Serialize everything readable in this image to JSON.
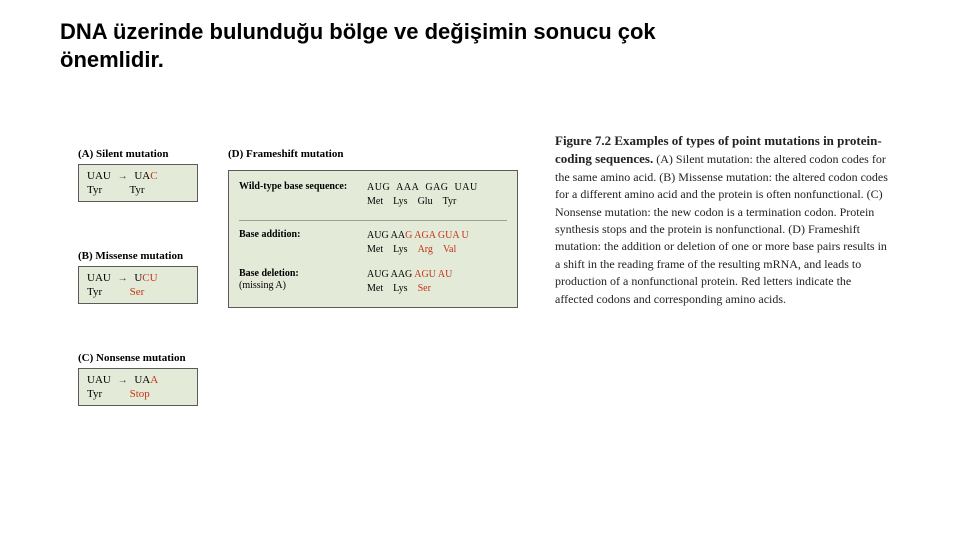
{
  "title": "DNA üzerinde bulunduğu bölge ve değişimin sonucu çok önemlidir.",
  "panelA": {
    "label": "(A) Silent mutation",
    "from_codon": "UAU",
    "to_codon_pre": "UA",
    "to_codon_mut": "C",
    "from_aa": "Tyr",
    "to_aa": "Tyr",
    "to_aa_red": false
  },
  "panelB": {
    "label": "(B) Missense mutation",
    "from_codon": "UAU",
    "to_codon_pre": "U",
    "to_codon_mut": "CU",
    "from_aa": "Tyr",
    "to_aa": "Ser",
    "to_aa_red": true
  },
  "panelC": {
    "label": "(C) Nonsense mutation",
    "from_codon": "UAU",
    "to_codon_pre": "UA",
    "to_codon_mut": "A",
    "from_aa": "Tyr",
    "to_aa": "Stop",
    "to_aa_red": true
  },
  "frameshift": {
    "label": "(D) Frameshift mutation",
    "wild": {
      "key": "Wild-type base sequence:",
      "codons": [
        "AUG",
        "AAA",
        "GAG",
        "UAU"
      ],
      "aas": [
        "Met",
        "Lys",
        "Glu",
        "Tyr"
      ],
      "red_codons": [
        false,
        false,
        false,
        false
      ],
      "red_aas": [
        false,
        false,
        false,
        false
      ]
    },
    "addition": {
      "key": "Base addition:",
      "codons_html": "AUG AA<span class='red'>G</span> <span class='red'>AGA</span> <span class='red'>GUA</span> <span class='red'>U</span>",
      "aas": [
        "Met",
        "Lys",
        "Arg",
        "Val"
      ],
      "red_aas": [
        false,
        false,
        true,
        true
      ]
    },
    "deletion": {
      "key_l1": "Base deletion:",
      "key_l2": "(missing A)",
      "codons_html": "AUG AAG <span class='red'>AGU</span> <span class='red'>AU</span>",
      "aas": [
        "Met",
        "Lys",
        "Ser"
      ],
      "red_aas": [
        false,
        false,
        true
      ]
    }
  },
  "caption": {
    "title": "Figure 7.2  Examples of types of point mutations in protein-coding sequences.",
    "body": " (A) Silent mutation: the altered codon codes for the same amino acid. (B) Missense mutation: the altered codon codes for a different amino acid and the protein is often nonfunctional. (C) Nonsense mutation: the new codon is a termination codon. Protein synthesis stops and the protein is nonfunctional. (D) Frameshift mutation: the addition or deletion of one or more base pairs results in a shift in the reading frame of the resulting mRNA, and leads to production of a nonfunctional protein. Red letters indicate the affected codons and corresponding amino acids."
  },
  "colors": {
    "panel_bg": "#e4ead8",
    "panel_border": "#5a5a5a",
    "mutation_red": "#c23516"
  }
}
